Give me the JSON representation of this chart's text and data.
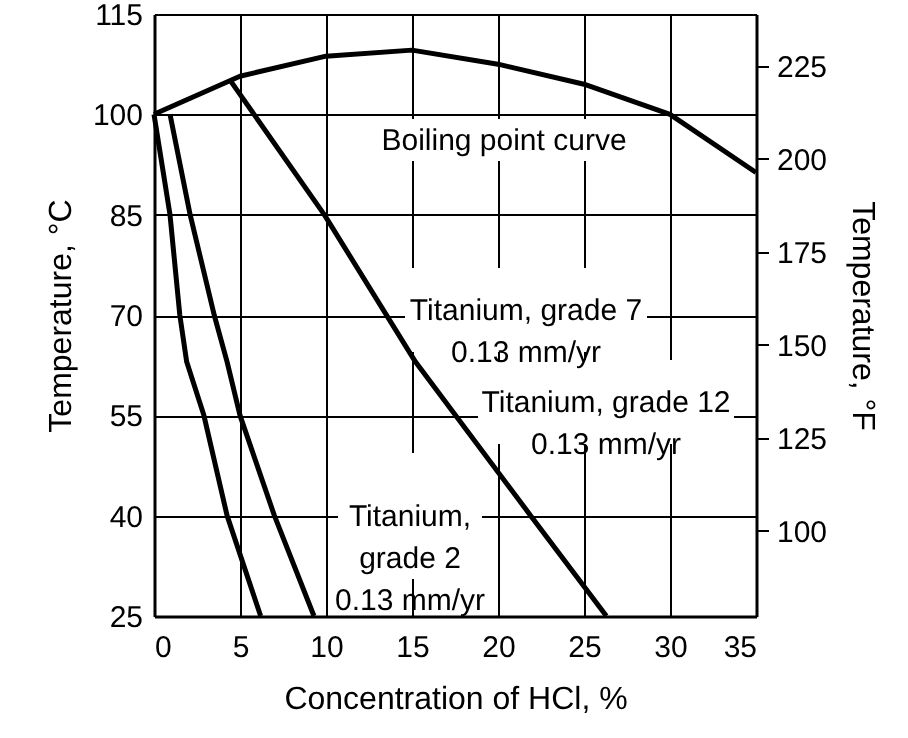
{
  "chart_data": {
    "type": "line",
    "xlabel": "Concentration of HCl, %",
    "ylabel": "Temperature, °C",
    "y2label": "Temperature, °F",
    "xlim": [
      0,
      35
    ],
    "xticks": [
      0,
      5,
      10,
      15,
      20,
      25,
      30,
      35
    ],
    "ylim": [
      25,
      115
    ],
    "yticks": [
      25,
      40,
      55,
      70,
      85,
      100,
      115
    ],
    "y2lim": [
      77,
      239
    ],
    "y2ticks": [
      100,
      125,
      150,
      175,
      200,
      225
    ],
    "grid": true,
    "marker": "none",
    "line_style": "solid",
    "series": [
      {
        "color": "#000000",
        "x": [
          0,
          5,
          10,
          15,
          20,
          25,
          30,
          35
        ],
        "values": [
          100,
          105.7,
          108.7,
          109.6,
          107.5,
          104.5,
          100,
          91.3
        ]
      },
      {
        "color": "#000000",
        "x": [
          4.45,
          9.9,
          15.2,
          21.9,
          26.3
        ],
        "values": [
          105,
          85,
          63,
          40,
          25
        ]
      },
      {
        "color": "#000000",
        "x": [
          0.93,
          2.1,
          3.5,
          4.25,
          5.0,
          7.0,
          9.3
        ],
        "values": [
          100,
          85,
          70,
          63,
          55,
          40,
          25
        ]
      },
      {
        "color": "#000000",
        "x": [
          0,
          0.93,
          1.5,
          1.9,
          2.9,
          4.25,
          6.2
        ],
        "values": [
          100,
          85,
          70,
          63,
          55,
          40,
          25
        ]
      }
    ],
    "annotations": [
      "Boiling point curve",
      "Titanium, grade 7\n0.13 mm/yr",
      "Titanium, grade 12\n0.13 mm/yr",
      "Titanium,\ngrade 2\n0.13 mm/yr"
    ]
  }
}
